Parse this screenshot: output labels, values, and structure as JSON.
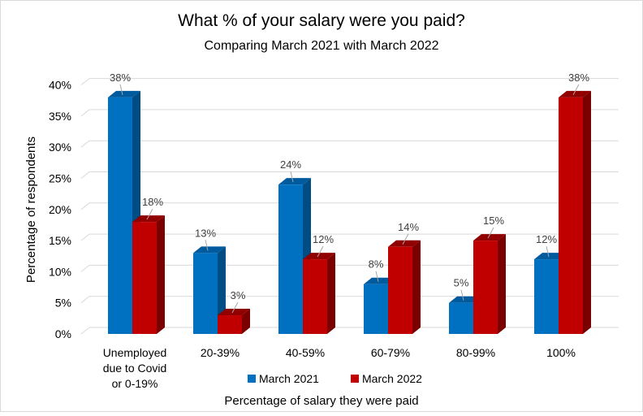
{
  "chart_data": {
    "type": "bar",
    "title": "What % of your salary were you paid?",
    "subtitle": "Comparing March 2021 with March 2022",
    "xlabel": "Percentage of salary they were paid",
    "ylabel": "Percentage of respondents",
    "ylim": [
      0,
      40
    ],
    "yticks": [
      "0%",
      "5%",
      "10%",
      "15%",
      "20%",
      "25%",
      "30%",
      "35%",
      "40%"
    ],
    "categories": [
      [
        "Unemployed",
        "due to Covid",
        "or 0-19%"
      ],
      [
        "20-39%"
      ],
      [
        "40-59%"
      ],
      [
        "60-79%"
      ],
      [
        "80-99%"
      ],
      [
        "100%"
      ]
    ],
    "series": [
      {
        "name": "March 2021",
        "values": [
          38,
          13,
          24,
          8,
          5,
          12
        ],
        "labels": [
          "38%",
          "13%",
          "24%",
          "8%",
          "5%",
          "12%"
        ],
        "color": "#0070C0",
        "side": "#004C85",
        "top": "#005A9E"
      },
      {
        "name": "March 2022",
        "values": [
          18,
          3,
          12,
          14,
          15,
          38
        ],
        "labels": [
          "18%",
          "3%",
          "12%",
          "14%",
          "15%",
          "38%"
        ],
        "color": "#C00000",
        "side": "#7A0000",
        "top": "#900000"
      }
    ],
    "grid": true,
    "legend": "bottom"
  }
}
